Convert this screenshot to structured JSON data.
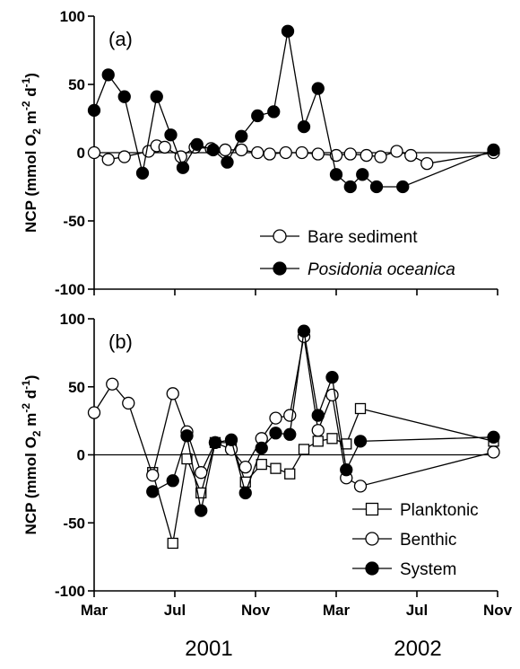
{
  "chart_data": [
    {
      "type": "line",
      "panel_label": "(a)",
      "ylabel_parts": [
        "NCP (mmol O",
        "2",
        " m",
        "-2",
        " d",
        "-1",
        ")"
      ],
      "ylim": [
        -100,
        100
      ],
      "yticks": [
        100,
        50,
        0,
        -50,
        -100
      ],
      "xlim": [
        0,
        20
      ],
      "xticks": [
        0,
        4,
        8,
        12,
        16,
        20
      ],
      "xtick_labels": [
        "Mar",
        "Jul",
        "Nov",
        "Mar",
        "Jul",
        "Nov"
      ],
      "zero_line": true,
      "legend_position": "bottom-right",
      "series": [
        {
          "name": "Bare sediment",
          "marker": "circle-open",
          "x": [
            0,
            0.7,
            1.5,
            2.7,
            3.1,
            3.5,
            4.3,
            5.0,
            5.8,
            6.5,
            7.3,
            8.1,
            8.7,
            9.5,
            10.3,
            11.1,
            12.0,
            12.7,
            13.5,
            14.2,
            15.0,
            15.7,
            16.5,
            19.8
          ],
          "y": [
            0,
            -5,
            -3,
            1,
            5,
            4,
            -3,
            4,
            3,
            2,
            2,
            0,
            -1,
            0,
            0,
            -1,
            -2,
            -1,
            -2,
            -3,
            1,
            -2,
            -8,
            0
          ]
        },
        {
          "name": "Posidonia oceanica",
          "marker": "circle-filled",
          "italic": true,
          "x": [
            0,
            0.7,
            1.5,
            2.4,
            3.1,
            3.8,
            4.4,
            5.1,
            5.9,
            6.6,
            7.3,
            8.1,
            8.9,
            9.6,
            10.4,
            11.1,
            12.0,
            12.7,
            13.3,
            14.0,
            15.3,
            19.8
          ],
          "y": [
            31,
            57,
            41,
            -15,
            41,
            13,
            -11,
            6,
            2,
            -7,
            12,
            27,
            30,
            89,
            19,
            47,
            -16,
            -25,
            -16,
            -25,
            -25,
            2
          ]
        }
      ]
    },
    {
      "type": "line",
      "panel_label": "(b)",
      "ylabel_parts": [
        "NCP (mmol O",
        "2",
        " m",
        "-2",
        " d",
        "-1",
        ")"
      ],
      "ylim": [
        -100,
        100
      ],
      "yticks": [
        100,
        50,
        0,
        -50,
        -100
      ],
      "xlim": [
        0,
        20
      ],
      "xticks": [
        0,
        4,
        8,
        12,
        16,
        20
      ],
      "xtick_labels": [
        "Mar",
        "Jul",
        "Nov",
        "Mar",
        "Jul",
        "Nov"
      ],
      "zero_line": true,
      "legend_position": "bottom-right",
      "series": [
        {
          "name": "Planktonic",
          "marker": "square-open",
          "x": [
            2.9,
            3.9,
            4.6,
            5.3,
            6.0,
            6.8,
            7.5,
            8.3,
            9.0,
            9.7,
            10.4,
            11.1,
            11.8,
            12.5,
            13.2,
            19.8
          ],
          "y": [
            -13,
            -65,
            -3,
            -28,
            9,
            9,
            -20,
            -7,
            -10,
            -14,
            4,
            10,
            12,
            8,
            34,
            10
          ]
        },
        {
          "name": "Benthic",
          "marker": "circle-open",
          "x": [
            0,
            0.9,
            1.7,
            2.9,
            3.9,
            4.6,
            5.3,
            6.0,
            6.8,
            7.5,
            8.3,
            9.0,
            9.7,
            10.4,
            11.1,
            11.8,
            12.5,
            13.2,
            19.8
          ],
          "y": [
            31,
            52,
            38,
            -15,
            45,
            17,
            -13,
            9,
            4,
            -9,
            12,
            27,
            29,
            87,
            18,
            44,
            -17,
            -23,
            2
          ]
        },
        {
          "name": "System",
          "marker": "circle-filled",
          "x": [
            2.9,
            3.9,
            4.6,
            5.3,
            6.0,
            6.8,
            7.5,
            8.3,
            9.0,
            9.7,
            10.4,
            11.1,
            11.8,
            12.5,
            13.2,
            19.8
          ],
          "y": [
            -27,
            -19,
            14,
            -41,
            9,
            11,
            -28,
            5,
            16,
            15,
            91,
            29,
            57,
            -11,
            10,
            13
          ]
        }
      ]
    }
  ],
  "year_labels": [
    "2001",
    "2002"
  ]
}
